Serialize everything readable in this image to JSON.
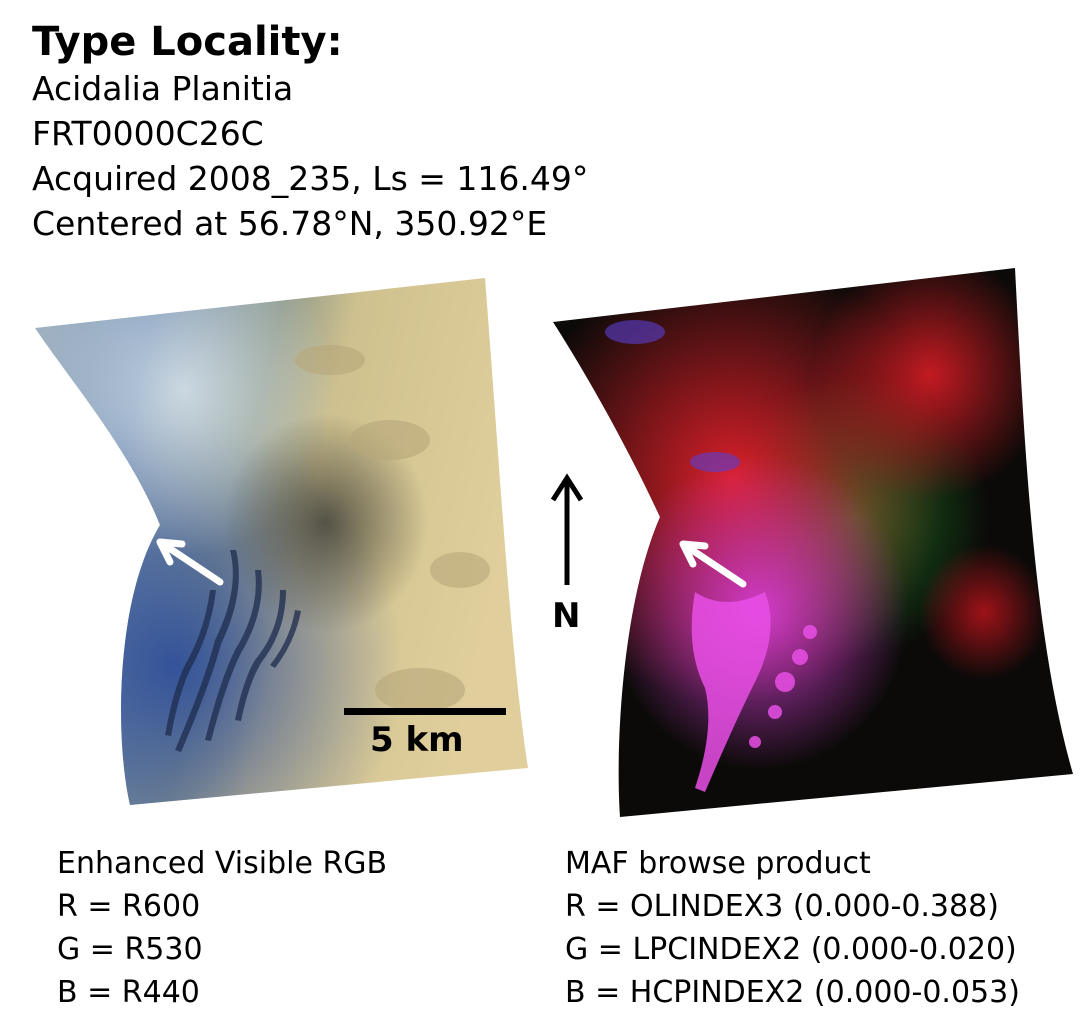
{
  "header": {
    "title": "Type Locality:",
    "location": "Acidalia Planitia",
    "observation_id": "FRT0000C26C",
    "acquired": "Acquired 2008_235, Ls = 116.49°",
    "centered": "Centered at 56.78°N, 350.92°E"
  },
  "left_panel": {
    "scale_label": "5 km",
    "caption": {
      "title": "Enhanced Visible RGB",
      "r": "R = R600",
      "g": "G = R530",
      "b": "B = R440"
    }
  },
  "right_panel": {
    "north_label": "N",
    "caption": {
      "title": "MAF browse product",
      "r": "R = OLINDEX3 (0.000-0.388)",
      "g": "G = LPCINDEX2 (0.000-0.020)",
      "b": "B = HCPINDEX2 (0.000-0.053)"
    }
  },
  "colors": {
    "rgb_tan": "#d8c48e",
    "rgb_blue": "#4a6aa8",
    "maf_red": "#e3202a",
    "maf_magenta": "#e040e0",
    "maf_green": "#1f8a2a",
    "maf_dark": "#0b0a08"
  },
  "icons": [
    "arrow-north-icon",
    "pointer-arrow-icon"
  ]
}
